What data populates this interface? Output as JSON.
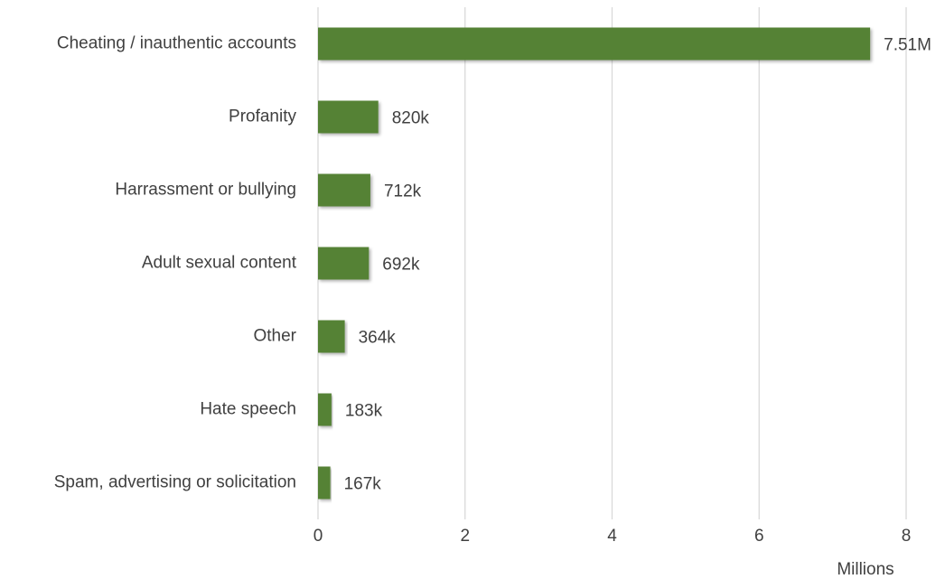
{
  "chart_data": {
    "type": "bar",
    "horizontal": true,
    "categories": [
      "Cheating / inauthentic accounts",
      "Profanity",
      "Harrassment or bullying",
      "Adult sexual content",
      "Other",
      "Hate speech",
      "Spam, advertising or solicitation"
    ],
    "values": [
      7.51,
      0.82,
      0.712,
      0.692,
      0.364,
      0.183,
      0.167
    ],
    "value_labels": [
      "7.51M",
      "820k",
      "712k",
      "692k",
      "364k",
      "183k",
      "167k"
    ],
    "color": "#548235",
    "xlim": [
      0,
      8
    ],
    "xticks": [
      0,
      2,
      4,
      6,
      8
    ],
    "xlabel": "Millions",
    "grid": true
  }
}
